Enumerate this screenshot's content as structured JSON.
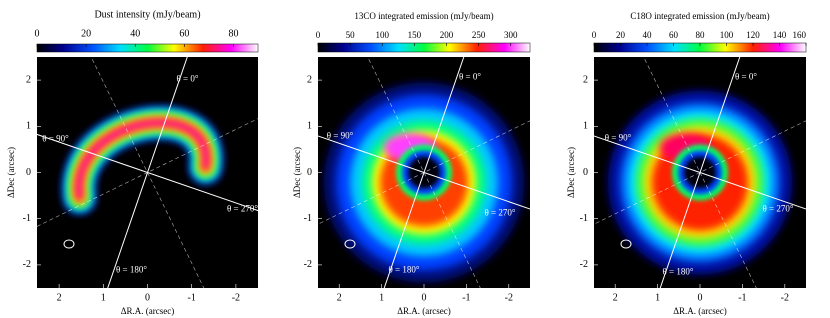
{
  "chart_data": [
    {
      "type": "image",
      "title": "Dust intensity (mJy/beam)",
      "xlabel": "ΔR.A. (arcsec)",
      "ylabel": "ΔDec (arcsec)",
      "xlim": [
        2.5,
        -2.5
      ],
      "ylim": [
        -2.5,
        2.5
      ],
      "xticks": [
        2,
        1,
        0,
        -1,
        -2
      ],
      "yticks": [
        2,
        1,
        0,
        -1,
        -2
      ],
      "clim": [
        0,
        90
      ],
      "cticks": [
        0,
        20,
        40,
        60,
        80
      ],
      "annotations": [
        "θ = 0°",
        "θ = 90°",
        "θ = 270°",
        "θ = 180°"
      ]
    },
    {
      "type": "image",
      "title": "13CO integrated emission (mJy/beam)",
      "xlabel": "ΔR.A. (arcsec)",
      "ylabel": "ΔDec (arcsec)",
      "xlim": [
        2.5,
        -2.5
      ],
      "ylim": [
        -2.5,
        2.5
      ],
      "xticks": [
        2,
        1,
        0,
        -1,
        -2
      ],
      "yticks": [
        2,
        1,
        0,
        -1,
        -2
      ],
      "clim": [
        0,
        330
      ],
      "cticks": [
        0,
        50,
        100,
        150,
        200,
        250,
        300
      ],
      "annotations": [
        "θ = 0°",
        "θ = 90°",
        "θ = 270°",
        "θ = 180°"
      ]
    },
    {
      "type": "image",
      "title": "C18O integrated emission (mJy/beam)",
      "xlabel": "ΔR.A. (arcsec)",
      "ylabel": "ΔDec (arcsec)",
      "xlim": [
        2.5,
        -2.5
      ],
      "ylim": [
        -2.5,
        2.5
      ],
      "xticks": [
        2,
        1,
        0,
        -1,
        -2
      ],
      "yticks": [
        2,
        1,
        0,
        -1,
        -2
      ],
      "clim": [
        0,
        160
      ],
      "cticks": [
        0,
        20,
        40,
        60,
        80,
        100,
        120,
        140,
        160
      ],
      "annotations": [
        "θ = 0°",
        "θ = 90°",
        "θ = 270°",
        "θ = 180°"
      ]
    }
  ]
}
